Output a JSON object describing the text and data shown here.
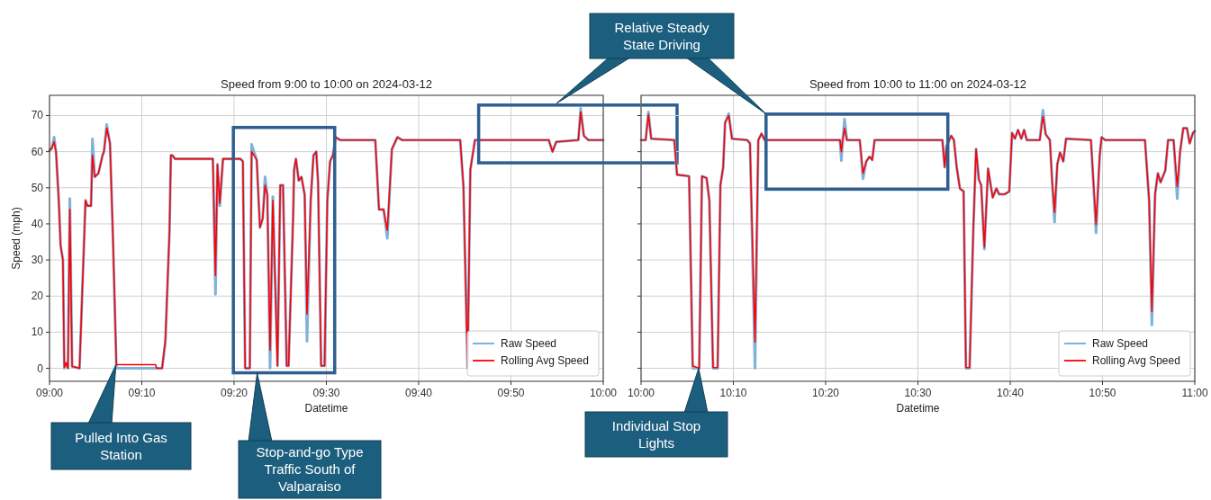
{
  "chart_data": [
    {
      "type": "line",
      "title": "Speed from 9:00 to 10:00 on 2024-03-12",
      "xlabel": "Datetime",
      "ylabel": "Speed (mph)",
      "x": [
        9,
        9.0042,
        9.0083,
        9.0117,
        9.0167,
        9.02,
        9.0242,
        9.0267,
        9.03,
        9.0333,
        9.0367,
        9.0408,
        9.0542,
        9.0592,
        9.065,
        9.0683,
        9.075,
        9.0775,
        9.0817,
        9.0883,
        9.0958,
        9.0983,
        9.1033,
        9.1092,
        9.1142,
        9.1208,
        9.1917,
        9.1933,
        9.2033,
        9.2092,
        9.2167,
        9.2192,
        9.2217,
        9.2267,
        9.295,
        9.2997,
        9.3033,
        9.3075,
        9.3133,
        9.345,
        9.3492,
        9.3533,
        9.3617,
        9.365,
        9.3742,
        9.38,
        9.385,
        9.3892,
        9.3933,
        9.3983,
        9.4033,
        9.4117,
        9.4167,
        9.4217,
        9.4283,
        9.4317,
        9.44,
        9.4417,
        9.445,
        9.45,
        9.455,
        9.4608,
        9.465,
        9.4717,
        9.4767,
        9.4817,
        9.485,
        9.4905,
        9.4967,
        9.5017,
        9.5067,
        9.5117,
        9.5167,
        9.525,
        9.5883,
        9.595,
        9.6033,
        9.61,
        9.6183,
        9.6283,
        9.6367,
        9.7417,
        9.7475,
        9.755,
        9.76,
        9.7683,
        9.9017,
        9.9083,
        9.915,
        9.955,
        9.9592,
        9.965,
        9.9733,
        10
      ],
      "series": [
        {
          "name": "Raw Speed",
          "color": "#7fb2d9",
          "values": [
            60.3,
            61,
            64,
            60,
            46.5,
            34,
            30,
            0,
            1.5,
            0,
            47,
            0.5,
            0,
            21.5,
            46.5,
            45,
            45,
            63.5,
            53,
            54,
            59,
            60,
            67.5,
            62.3,
            38,
            0,
            0,
            0,
            0,
            7,
            38,
            59,
            59,
            58,
            58,
            20.5,
            56.5,
            45,
            58,
            58,
            57.3,
            0,
            0,
            62,
            57.7,
            39,
            41.5,
            53,
            48,
            0,
            47.5,
            0.7,
            50.7,
            50.7,
            0.7,
            0.7,
            42.3,
            55,
            58,
            52,
            53,
            48,
            7.5,
            46.5,
            59,
            60,
            51.5,
            0.7,
            0.7,
            46.5,
            57.3,
            59,
            64,
            63.2,
            63.2,
            44,
            44,
            36,
            60.7,
            64,
            63.2,
            63.2,
            50,
            0,
            55,
            63.2,
            63.2,
            60,
            62.7,
            63.2,
            72,
            64.4,
            63.2,
            63.2
          ]
        },
        {
          "name": "Rolling Avg Speed",
          "color": "#ff0000",
          "values": [
            60.3,
            61,
            62.7,
            60,
            46.5,
            34,
            30,
            0.3,
            1.5,
            0,
            44,
            0.5,
            0,
            21.5,
            46.5,
            45,
            45,
            59,
            53,
            54,
            59,
            60,
            66.5,
            62.3,
            38,
            1,
            1,
            0,
            0,
            8,
            38,
            59,
            59,
            58,
            58,
            25.7,
            56.5,
            45.7,
            58,
            58,
            57.3,
            0,
            0,
            60,
            57.7,
            39,
            41.5,
            50.7,
            48,
            5,
            46.5,
            0.7,
            50.7,
            50.7,
            0.7,
            0.7,
            42.3,
            55,
            58,
            52,
            53,
            48,
            15,
            46.5,
            59,
            60,
            51.5,
            0.7,
            0.7,
            46.5,
            57.3,
            59,
            64,
            63.2,
            63.2,
            44,
            44,
            38.2,
            60.7,
            64,
            63.2,
            63.2,
            50.7,
            0,
            55,
            63.2,
            63.2,
            60,
            62.7,
            63.2,
            71,
            64.4,
            63.2,
            63.2
          ]
        }
      ],
      "xlim": [
        9,
        10
      ],
      "xticks": [
        {
          "value": 9,
          "label": "09:00"
        },
        {
          "value": 9.1667,
          "label": "09:10"
        },
        {
          "value": 9.3333,
          "label": "09:20"
        },
        {
          "value": 9.5,
          "label": "09:30"
        },
        {
          "value": 9.6667,
          "label": "09:40"
        },
        {
          "value": 9.8333,
          "label": "09:50"
        },
        {
          "value": 10,
          "label": "10:00"
        }
      ],
      "ylim": [
        -3.6,
        75.6
      ],
      "yticks": [
        0,
        10,
        20,
        30,
        40,
        50,
        60,
        70
      ],
      "grid": true,
      "legend": "bottom right",
      "annotations": [
        "Pulled Into Gas Station",
        "Stop-and-go Type Traffic South of Valparaiso"
      ]
    },
    {
      "type": "line",
      "title": "Speed from 10:00 to 11:00 on 2024-03-12",
      "xlabel": "Datetime",
      "x": [
        10,
        10.0083,
        10.0133,
        10.0183,
        10.06,
        10.065,
        10.0867,
        10.0933,
        10.105,
        10.11,
        10.1183,
        10.1233,
        10.13,
        10.1383,
        10.1433,
        10.1483,
        10.1517,
        10.1583,
        10.1642,
        10.1917,
        10.1967,
        10.2058,
        10.2117,
        10.2175,
        10.2233,
        10.3592,
        10.3617,
        10.3642,
        10.3675,
        10.3717,
        10.395,
        10.4008,
        10.4067,
        10.4125,
        10.4175,
        10.4217,
        10.5442,
        10.5483,
        10.5517,
        10.56,
        10.565,
        10.57,
        10.5758,
        10.5825,
        10.5867,
        10.5933,
        10.6,
        10.605,
        10.61,
        10.6142,
        10.62,
        10.6267,
        10.635,
        10.6417,
        10.6467,
        10.6567,
        10.665,
        10.67,
        10.675,
        10.6808,
        10.6867,
        10.6917,
        10.6967,
        10.72,
        10.7258,
        10.7308,
        10.7383,
        10.7425,
        10.7467,
        10.7517,
        10.7567,
        10.7625,
        10.7675,
        10.8125,
        10.8217,
        10.8283,
        10.8317,
        10.8383,
        10.91,
        10.9175,
        10.9225,
        10.9283,
        10.9333,
        10.9383,
        10.9467,
        10.9517,
        10.9617,
        10.9683,
        10.9733,
        10.9792,
        10.9858,
        10.9908,
        10.9967,
        11
      ],
      "series": [
        {
          "name": "Raw Speed",
          "color": "#7fb2d9",
          "values": [
            63.2,
            63.2,
            71,
            63.6,
            63.2,
            53.6,
            53.2,
            0,
            0,
            53.2,
            52.7,
            46.5,
            0,
            0,
            50.7,
            55.7,
            68,
            70.5,
            63.6,
            63.2,
            62.3,
            0,
            63.2,
            65,
            63.2,
            63.2,
            57.5,
            63.2,
            69,
            63.2,
            63.2,
            52.5,
            57.3,
            58.6,
            57.7,
            63.2,
            63.2,
            55.7,
            61.5,
            64.4,
            63.2,
            55.7,
            49.8,
            49,
            0,
            0,
            38.2,
            60.7,
            52.3,
            50.7,
            33,
            55.3,
            47.3,
            49.8,
            48.2,
            48.2,
            49,
            65.2,
            63.6,
            66,
            63.6,
            66,
            63.2,
            63.2,
            71.5,
            64.8,
            63.2,
            51.5,
            40.5,
            56.5,
            59.8,
            57.3,
            63.6,
            63.2,
            37.5,
            59,
            64,
            63.2,
            63.2,
            46.5,
            12,
            48.2,
            54,
            51.5,
            54.8,
            63.2,
            63.2,
            47,
            59.8,
            66.5,
            66.5,
            62.3,
            65.2,
            65.7
          ]
        },
        {
          "name": "Rolling Avg Speed",
          "color": "#ff0000",
          "values": [
            63.2,
            63.2,
            70.3,
            63.6,
            63.2,
            53.6,
            53.2,
            0.7,
            0,
            53.2,
            52.7,
            46.5,
            0.2,
            0.2,
            50.7,
            55.7,
            68,
            70,
            63.6,
            63.2,
            62.3,
            7.3,
            63.2,
            65,
            63.2,
            63.2,
            60,
            63.2,
            66.5,
            63.2,
            63.2,
            54,
            57.3,
            58.6,
            57.7,
            63.2,
            63.2,
            55.7,
            61.5,
            64.4,
            63.2,
            55.7,
            49.8,
            49,
            0.2,
            0.2,
            38.2,
            60.7,
            52.3,
            50.7,
            33.6,
            55.3,
            47.3,
            49.8,
            48.2,
            48.2,
            49,
            65.2,
            63.6,
            66,
            63.6,
            66,
            63.2,
            63.2,
            69.8,
            64.8,
            63.2,
            51.5,
            43.2,
            56.5,
            59.8,
            57.3,
            63.6,
            63.2,
            39.8,
            59,
            64,
            63.2,
            63.2,
            46.5,
            15.7,
            48.2,
            54,
            51.5,
            54.8,
            63.2,
            63.2,
            50.3,
            59.8,
            66.5,
            66.5,
            62.3,
            65.2,
            65.7
          ]
        }
      ],
      "xlim": [
        10,
        11
      ],
      "xticks": [
        {
          "value": 10,
          "label": "10:00"
        },
        {
          "value": 10.1667,
          "label": "10:10"
        },
        {
          "value": 10.3333,
          "label": "10:20"
        },
        {
          "value": 10.5,
          "label": "10:30"
        },
        {
          "value": 10.6667,
          "label": "10:40"
        },
        {
          "value": 10.8333,
          "label": "10:50"
        },
        {
          "value": 11,
          "label": "11:00"
        }
      ],
      "ylim": [
        -3.6,
        75.6
      ],
      "yticks": [
        0,
        10,
        20,
        30,
        40,
        50,
        60,
        70
      ],
      "tick_labels": "x",
      "grid": true,
      "legend": "bottom right",
      "annotations": [
        "Relative Steady State Driving",
        "Individual Stop Lights"
      ]
    }
  ]
}
